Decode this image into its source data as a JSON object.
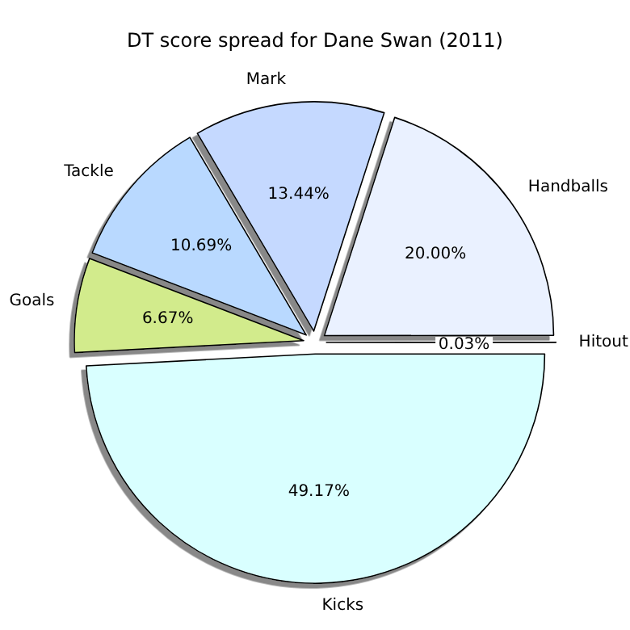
{
  "chart_data": {
    "type": "pie",
    "title": "DT score spread for Dane Swan (2011)",
    "categories": [
      "Hitout",
      "Handballs",
      "Mark",
      "Tackle",
      "Goals",
      "Kicks"
    ],
    "values": [
      0.03,
      20.0,
      13.44,
      10.69,
      6.67,
      49.17
    ],
    "colors": [
      "#f0f0ff",
      "#eaf1ff",
      "#c5d9ff",
      "#b9d9ff",
      "#d2eb8c",
      "#d9ffff"
    ],
    "value_labels": [
      "0.03%",
      "20.00%",
      "13.44%",
      "10.69%",
      "6.67%",
      "49.17%"
    ]
  }
}
